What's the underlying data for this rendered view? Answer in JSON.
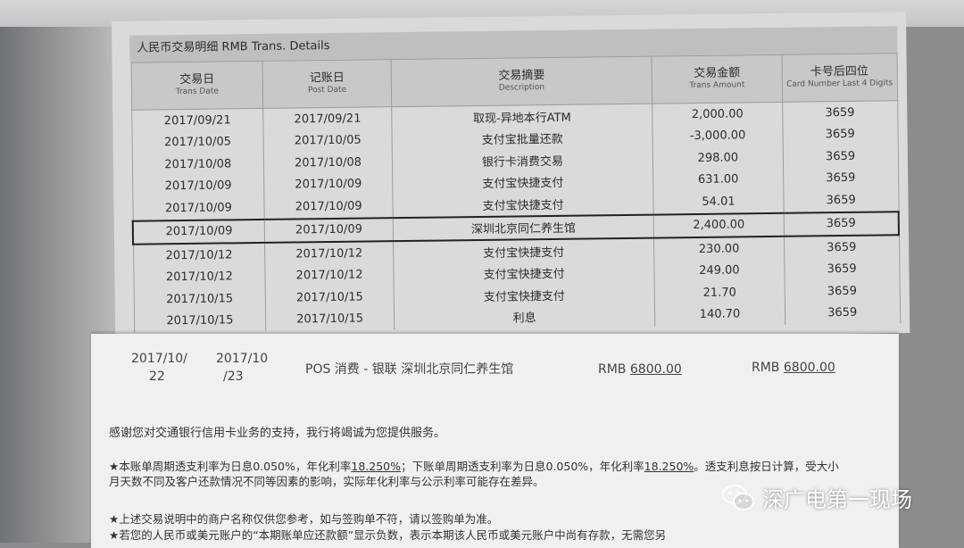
{
  "statement": {
    "title": "人民币交易明细 RMB Trans. Details",
    "columns": [
      {
        "zh": "交易日",
        "en": "Trans Date"
      },
      {
        "zh": "记账日",
        "en": "Post Date"
      },
      {
        "zh": "交易摘要",
        "en": "Description"
      },
      {
        "zh": "交易金额",
        "en": "Trans Amount"
      },
      {
        "zh": "卡号后四位",
        "en": "Card Number Last 4 Digits"
      }
    ],
    "rows": [
      [
        "2017/09/21",
        "2017/09/21",
        "取现-异地本行ATM",
        "2,000.00",
        "3659"
      ],
      [
        "2017/10/05",
        "2017/10/05",
        "支付宝批量还款",
        "-3,000.00",
        "3659"
      ],
      [
        "2017/10/08",
        "2017/10/08",
        "银行卡消费交易",
        "298.00",
        "3659"
      ],
      [
        "2017/10/09",
        "2017/10/09",
        "支付宝快捷支付",
        "631.00",
        "3659"
      ],
      [
        "2017/10/09",
        "2017/10/09",
        "支付宝快捷支付",
        "54.01",
        "3659"
      ],
      [
        "2017/10/09",
        "2017/10/09",
        "深圳北京同仁养生馆",
        "2,400.00",
        "3659"
      ],
      [
        "2017/10/12",
        "2017/10/12",
        "支付宝快捷支付",
        "230.00",
        "3659"
      ],
      [
        "2017/10/12",
        "2017/10/12",
        "支付宝快捷支付",
        "249.00",
        "3659"
      ],
      [
        "2017/10/15",
        "2017/10/15",
        "支付宝快捷支付",
        "21.70",
        "3659"
      ],
      [
        "2017/10/15",
        "2017/10/15",
        "利息",
        "140.70",
        "3659"
      ]
    ],
    "highlighted_row": 5
  },
  "second_statement": {
    "trans_date_line1": "2017/10/",
    "trans_date_line2": "22",
    "post_date_line1": "2017/10",
    "post_date_line2": "/23",
    "description": "POS 消费 - 银联 深圳北京同仁养生馆",
    "currency1": "RMB",
    "amount1": "6800.00",
    "currency2": "RMB",
    "amount2": "6800.00",
    "thanks": "感谢您对交通银行信用卡业务的支持，我行将竭诚为您提供服务。",
    "note1_a": "★本账单周期透支利率为日息0.050%，年化利率",
    "note1_rate": "18.250%",
    "note1_b": "；下账单周期透支利率为日息0.050%，年化利率",
    "note1_rate2": "18.250%",
    "note1_c": "。透支利息按日计算，受大小月天数不同及客户还款情况不同等因素的影响，实际年化利率与公示利率可能存在差异。",
    "note2": "★上述交易说明中的商户名称仅供您参考，如与签购单不符，请以签购单为准。",
    "note3": "★若您的人民币或美元账户的“本期账单应还款额”显示负数，表示本期该人民币或美元账户中尚有存款，无需您另"
  },
  "watermark": {
    "text": "深广电第一现场",
    "icon": "wechat-icon"
  }
}
